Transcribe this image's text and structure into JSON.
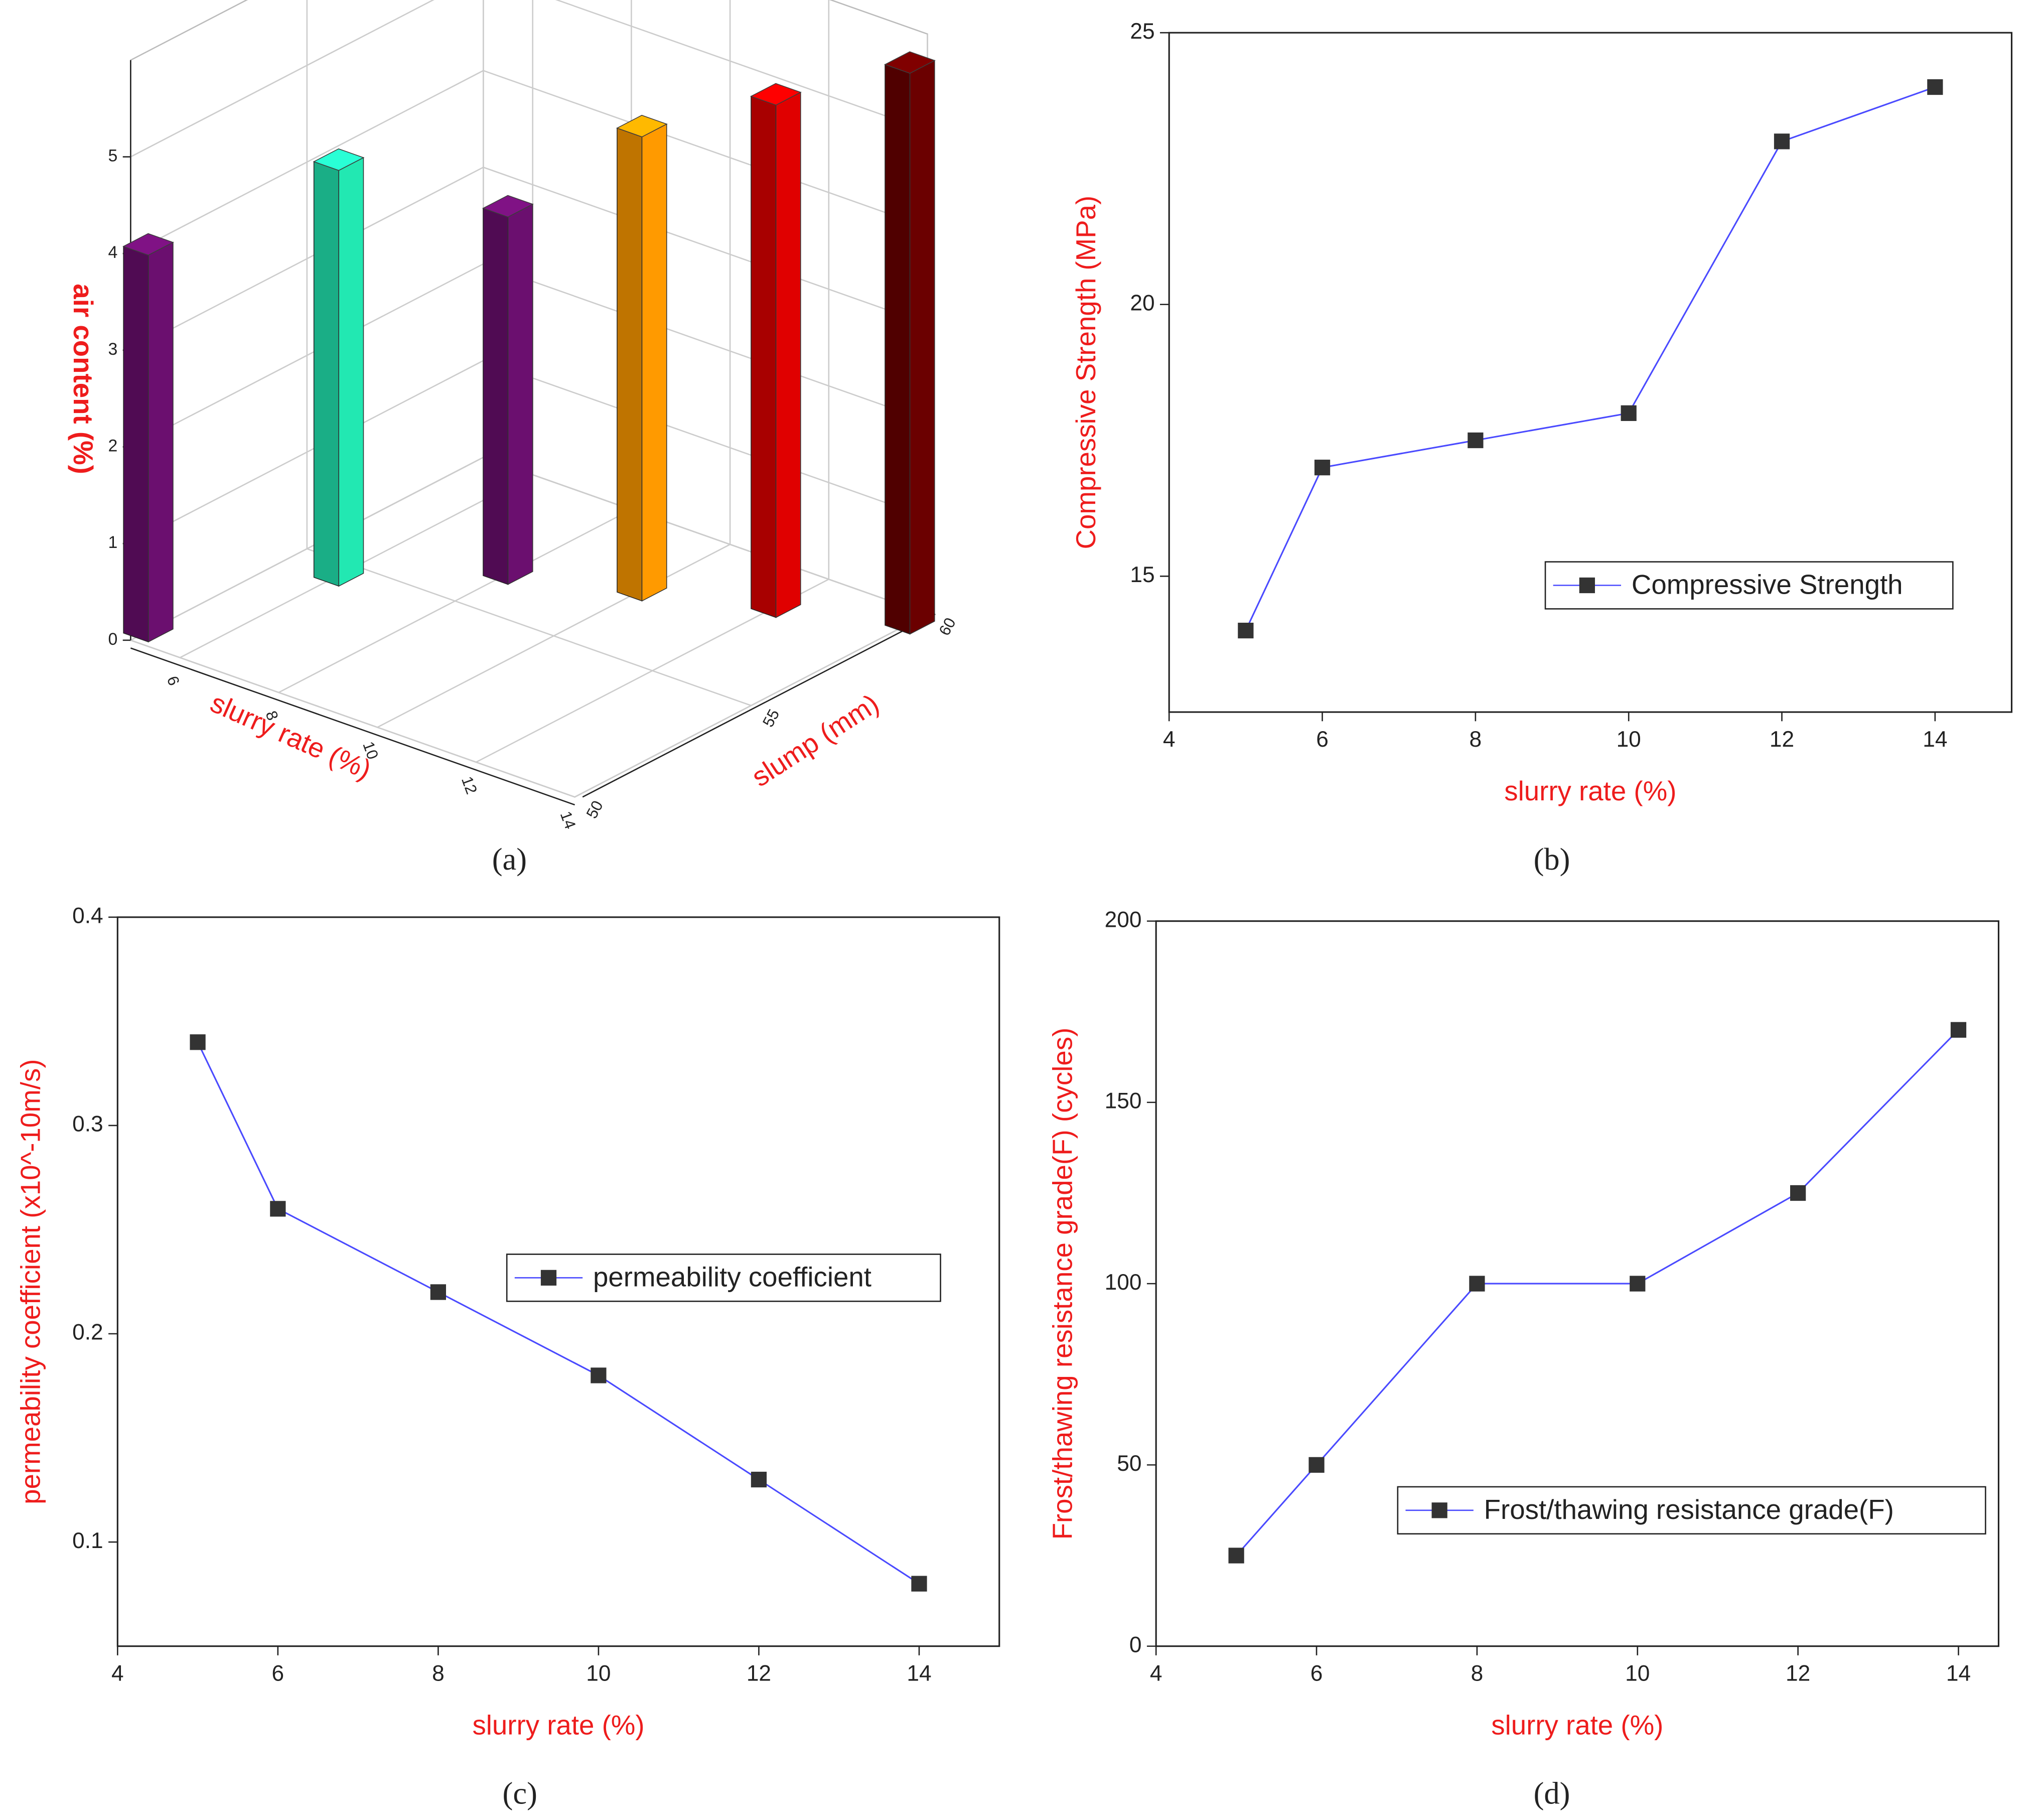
{
  "chart_data": [
    {
      "type": "bar3d",
      "caption": "(a)",
      "xlabel": "slurry rate (%)",
      "ylabel": "slump (mm)",
      "zlabel": "air content (%)",
      "x": [
        5,
        6,
        8,
        10,
        12,
        14
      ],
      "y": [
        50.5,
        54.5,
        56.5,
        57.5,
        58.5,
        59.5
      ],
      "values": [
        4.0,
        4.3,
        3.8,
        4.8,
        5.3,
        5.8
      ],
      "colors": [
        "#6b0f6f",
        "#22e8b2",
        "#6b0f6f",
        "#ff9a00",
        "#e00000",
        "#6b0000"
      ],
      "xlim": [
        5,
        14
      ],
      "xticks": [
        6,
        8,
        10,
        12,
        14
      ],
      "ylim": [
        50,
        60
      ],
      "yticks": [
        50,
        55,
        60
      ],
      "zlim": [
        0,
        6
      ],
      "zticks": [
        0,
        1,
        2,
        3,
        4,
        5
      ]
    },
    {
      "type": "line",
      "caption": "(b)",
      "xlabel": "slurry rate (%)",
      "ylabel": "Compressive Strength (MPa)",
      "x": [
        5,
        6,
        8,
        10,
        12,
        14
      ],
      "series": [
        {
          "name": "Compressive Strength",
          "color": "#4a4aff",
          "marker_color": "#333333",
          "values": [
            14,
            17,
            17.5,
            18,
            23,
            24
          ]
        }
      ],
      "xlim": [
        4,
        15
      ],
      "xticks": [
        4,
        6,
        8,
        10,
        12,
        14
      ],
      "ylim": [
        12.5,
        25
      ],
      "yticks": [
        15,
        20,
        25
      ]
    },
    {
      "type": "line",
      "caption": "(c)",
      "xlabel": "slurry rate (%)",
      "ylabel": "permeability coefficient (x10^-10m/s)",
      "x": [
        5,
        6,
        8,
        10,
        12,
        14
      ],
      "series": [
        {
          "name": "permeability coefficient",
          "color": "#4a4aff",
          "marker_color": "#333333",
          "values": [
            0.34,
            0.26,
            0.22,
            0.18,
            0.13,
            0.08
          ]
        }
      ],
      "xlim": [
        4,
        15
      ],
      "xticks": [
        4,
        6,
        8,
        10,
        12,
        14
      ],
      "ylim": [
        0.05,
        0.4
      ],
      "yticks": [
        0.1,
        0.2,
        0.3,
        0.4
      ]
    },
    {
      "type": "line",
      "caption": "(d)",
      "xlabel": "slurry rate (%)",
      "ylabel": "Frost/thawing resistance grade(F) (cycles)",
      "x": [
        5,
        6,
        8,
        10,
        12,
        14
      ],
      "series": [
        {
          "name": "Frost/thawing resistance grade(F)",
          "color": "#4a4aff",
          "marker_color": "#333333",
          "values": [
            25,
            50,
            100,
            100,
            125,
            170
          ]
        }
      ],
      "xlim": [
        4,
        14.5
      ],
      "xticks": [
        4,
        6,
        8,
        10,
        12,
        14
      ],
      "ylim": [
        0,
        200
      ],
      "yticks": [
        0,
        50,
        100,
        150,
        200
      ]
    }
  ]
}
